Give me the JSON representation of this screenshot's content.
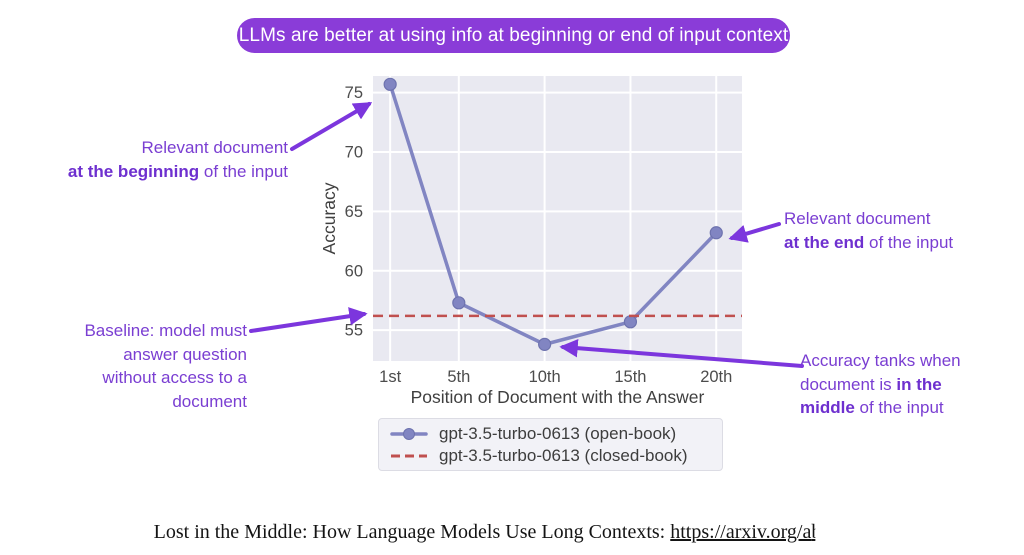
{
  "banner": {
    "text": "LLMs are better at using info at beginning or end of input context",
    "bg_color": "#8a3cd8",
    "text_color": "#ffffff"
  },
  "chart_data": {
    "type": "line",
    "xlabel": "Position of Document with the Answer",
    "ylabel": "Accuracy",
    "x_values": [
      1,
      5,
      10,
      15,
      20
    ],
    "x_tick_labels": [
      "1st",
      "5th",
      "10th",
      "15th",
      "20th"
    ],
    "y_ticks": [
      55,
      60,
      65,
      70,
      75
    ],
    "ylim": [
      52.4,
      76.4
    ],
    "xlim": [
      0,
      21.5
    ],
    "grid": true,
    "plot_bg": "#e9e9f1",
    "grid_color": "#ffffff",
    "tick_color": "#4c4c4c",
    "axis_label_color": "#3f3f3f",
    "legend_position": "below",
    "series": [
      {
        "name": "gpt-3.5-turbo-0613 (open-book)",
        "type": "line_marker",
        "color": "#8185c2",
        "marker_edge": "#6d72ae",
        "values": [
          75.7,
          57.3,
          53.8,
          55.7,
          63.2
        ]
      },
      {
        "name": "gpt-3.5-turbo-0613 (closed-book)",
        "type": "dashed_hline",
        "color": "#c0504f",
        "value": 56.2
      }
    ]
  },
  "annotations": {
    "beginning": {
      "line1": "Relevant document",
      "line2_bold": "at the beginning",
      "line2_rest": " of the input"
    },
    "baseline": {
      "line1": "Baseline: model must",
      "line2": "answer question",
      "line3": "without access to a",
      "line4": "document"
    },
    "end": {
      "line1": "Relevant document",
      "line2_bold": "at the end",
      "line2_rest": " of the input"
    },
    "middle": {
      "line1": "Accuracy tanks when",
      "line2_pre": "document is ",
      "line2_bold": "in the",
      "line3_bold": "middle",
      "line3_rest": " of the input"
    }
  },
  "arrows": {
    "color": "#7c36dd"
  },
  "citation": {
    "prefix": "Lost in the Middle: How Language Models Use Long Contexts: ",
    "link_text": "https://arxiv.org/a",
    "clipped_char": "b"
  }
}
